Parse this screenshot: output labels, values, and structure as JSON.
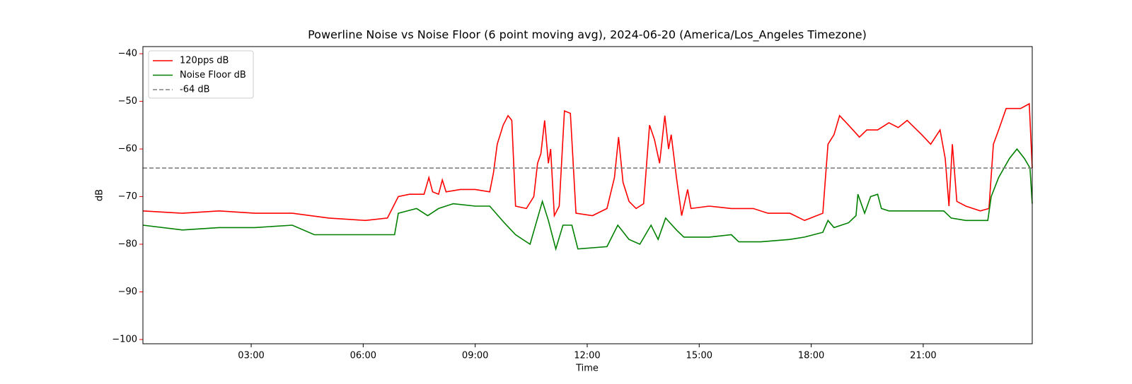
{
  "chart_data": {
    "type": "line",
    "title": "Powerline Noise vs Noise Floor (6 point moving avg), 2024-06-20 (America/Los_Angeles Timezone)",
    "x_label": "Time",
    "y_label": "dB",
    "xlim": [
      0.1,
      23.92
    ],
    "ylim": [
      -100.9,
      -38.5
    ],
    "xticks": [
      {
        "value": 3,
        "label": "03:00"
      },
      {
        "value": 6,
        "label": "06:00"
      },
      {
        "value": 9,
        "label": "09:00"
      },
      {
        "value": 12,
        "label": "12:00"
      },
      {
        "value": 15,
        "label": "15:00"
      },
      {
        "value": 18,
        "label": "18:00"
      },
      {
        "value": 21,
        "label": "21:00"
      }
    ],
    "yticks": [
      {
        "value": -40,
        "label": "−40"
      },
      {
        "value": -50,
        "label": "−50"
      },
      {
        "value": -60,
        "label": "−60"
      },
      {
        "value": -70,
        "label": "−70"
      },
      {
        "value": -80,
        "label": "−80"
      },
      {
        "value": -90,
        "label": "−90"
      },
      {
        "value": -100,
        "label": "−100"
      }
    ],
    "y_axis_color": "red",
    "legend": "upper left",
    "series": [
      {
        "name": "120pps dB",
        "color": "red",
        "x": [
          0.1,
          1.16,
          2.14,
          3.1,
          4.1,
          5.08,
          6.06,
          6.65,
          6.94,
          7.24,
          7.63,
          7.76,
          7.86,
          8.02,
          8.12,
          8.22,
          8.6,
          9.0,
          9.39,
          9.49,
          9.59,
          9.75,
          9.88,
          9.98,
          10.08,
          10.37,
          10.57,
          10.67,
          10.76,
          10.86,
          10.96,
          11.02,
          11.12,
          11.25,
          11.39,
          11.55,
          11.7,
          12.14,
          12.53,
          12.73,
          12.84,
          12.96,
          13.12,
          13.31,
          13.51,
          13.67,
          13.8,
          13.94,
          14.08,
          14.18,
          14.25,
          14.39,
          14.53,
          14.69,
          14.78,
          15.27,
          15.86,
          16.45,
          16.84,
          17.43,
          17.82,
          18.31,
          18.45,
          18.61,
          18.76,
          19.0,
          19.29,
          19.49,
          19.78,
          20.08,
          20.33,
          20.57,
          20.96,
          21.2,
          21.45,
          21.59,
          21.69,
          21.78,
          21.9,
          22.14,
          22.53,
          22.76,
          22.88,
          23.02,
          23.22,
          23.61,
          23.84,
          23.92
        ],
        "values": [
          -73,
          -73.5,
          -73,
          -73.5,
          -73.5,
          -74.5,
          -75,
          -74.5,
          -70,
          -69.5,
          -69.5,
          -66,
          -69,
          -69.5,
          -66.5,
          -69,
          -68.5,
          -68.5,
          -69,
          -65,
          -59,
          -55,
          -53,
          -54,
          -72,
          -72.5,
          -70,
          -63,
          -61,
          -54,
          -63,
          -60,
          -74,
          -72,
          -52,
          -52.5,
          -73.5,
          -74,
          -72.5,
          -66,
          -57.5,
          -67,
          -71,
          -72.5,
          -71.5,
          -55,
          -58,
          -63,
          -53,
          -60,
          -57,
          -66,
          -74,
          -68.5,
          -72.5,
          -72,
          -72.5,
          -72.5,
          -73.5,
          -73.5,
          -75,
          -73.5,
          -59,
          -57,
          -53,
          -55,
          -57.5,
          -56,
          -56,
          -54.5,
          -55.5,
          -54,
          -57,
          -59,
          -56,
          -62,
          -72,
          -59,
          -71,
          -72,
          -73,
          -72.5,
          -59,
          -56,
          -51.5,
          -51.5,
          -50.5,
          -64
        ]
      },
      {
        "name": "Noise Floor dB",
        "color": "green",
        "x": [
          0.1,
          1.16,
          2.14,
          3.1,
          4.1,
          4.69,
          5.27,
          6.06,
          6.84,
          6.94,
          7.43,
          7.73,
          8.02,
          8.41,
          9.0,
          9.39,
          9.78,
          10.08,
          10.47,
          10.8,
          10.96,
          11.16,
          11.35,
          11.59,
          11.75,
          12.53,
          12.82,
          13.12,
          13.41,
          13.71,
          13.9,
          14.1,
          14.39,
          14.59,
          15.27,
          15.86,
          16.06,
          16.65,
          17.43,
          17.82,
          18.31,
          18.45,
          18.61,
          19.0,
          19.2,
          19.25,
          19.43,
          19.59,
          19.78,
          19.88,
          20.08,
          20.37,
          20.96,
          21.55,
          21.75,
          22.14,
          22.53,
          22.73,
          22.82,
          23.02,
          23.31,
          23.51,
          23.71,
          23.86,
          23.92
        ],
        "values": [
          -76,
          -77,
          -76.5,
          -76.5,
          -76,
          -78,
          -78,
          -78,
          -78,
          -73.5,
          -72.5,
          -74,
          -72.5,
          -71.5,
          -72,
          -72,
          -75.5,
          -78,
          -80,
          -71,
          -75,
          -81,
          -76,
          -76,
          -81,
          -80.5,
          -76,
          -79,
          -80,
          -76,
          -79,
          -74.5,
          -77,
          -78.5,
          -78.5,
          -78,
          -79.5,
          -79.5,
          -79,
          -78.5,
          -77.5,
          -75,
          -76.5,
          -75.5,
          -74,
          -69.5,
          -73.5,
          -70,
          -69.5,
          -72.5,
          -73,
          -73,
          -73,
          -73,
          -74.5,
          -75,
          -75,
          -75,
          -70,
          -66,
          -62,
          -60,
          -62,
          -64,
          -71.5
        ]
      },
      {
        "name": "-64 dB",
        "color": "gray",
        "style": "dashed",
        "value": -64
      }
    ]
  }
}
